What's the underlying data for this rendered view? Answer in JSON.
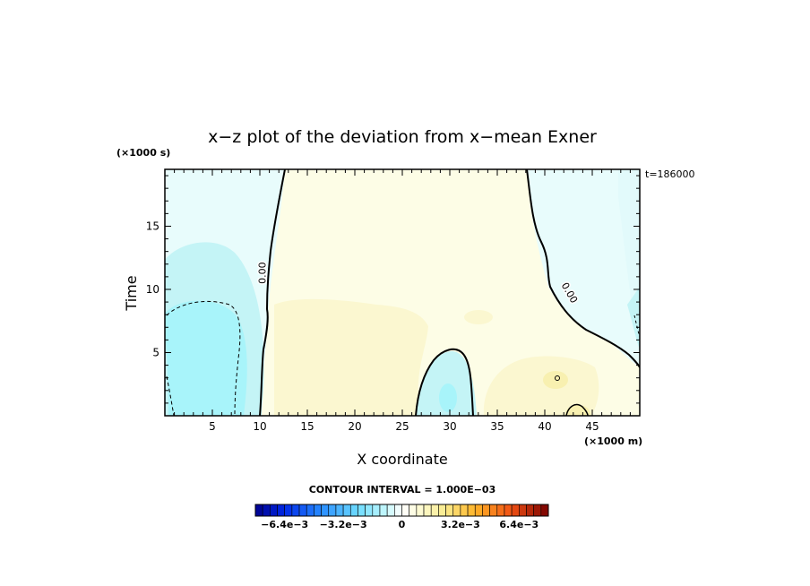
{
  "chart_data": {
    "type": "heatmap",
    "title": "x−z plot of the deviation from x−mean Exner",
    "xlabel": "X coordinate",
    "ylabel": "Time",
    "x_unit": "(×1000 m)",
    "y_unit": "(×1000 s)",
    "time_label": "t=186000",
    "xlim": [
      0,
      50
    ],
    "ylim": [
      0,
      19.5
    ],
    "x_ticks": [
      5,
      10,
      15,
      20,
      25,
      30,
      35,
      40,
      45
    ],
    "y_ticks": [
      5,
      10,
      15
    ],
    "contour_interval_label": "CONTOUR INTERVAL = 1.000E−03",
    "contour_labels": [
      {
        "text": "0.00",
        "x": 10.6,
        "y": 11.3
      },
      {
        "text": "0.00",
        "x": 42.3,
        "y": 9.6
      }
    ],
    "colorbar": {
      "vmin": -0.008,
      "vmax": 0.008,
      "step": 0.0004,
      "ticks": [
        {
          "label": "−6.4e−3",
          "value": -0.0064
        },
        {
          "label": "−3.2e−3",
          "value": -0.0032
        },
        {
          "label": "0",
          "value": 0
        },
        {
          "label": "3.2e−3",
          "value": 0.0032
        },
        {
          "label": "6.4e−3",
          "value": 0.0064
        }
      ]
    },
    "colors": {
      "neg_light": "#e8fcfc",
      "neg_mid": "#c4f4f6",
      "neg_strong": "#a8f4fa",
      "pos_light": "#fdfde6",
      "pos_mid": "#fbf7d0",
      "pos_strong": "#f8f0b0"
    }
  }
}
